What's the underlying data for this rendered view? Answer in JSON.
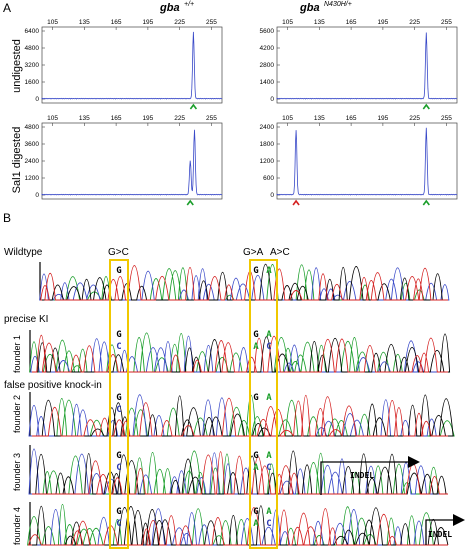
{
  "panel_a": {
    "label": "A",
    "col1": {
      "name": "gba",
      "sup": "+/+"
    },
    "col2": {
      "name": "gba",
      "sup": "N430H/+"
    },
    "row1": "undigested",
    "row2": "Sal1 digested",
    "x_ticks": [
      "105",
      "135",
      "165",
      "195",
      "225",
      "255"
    ],
    "plots": [
      {
        "id": "ud-wt",
        "y_ticks": [
          "6400",
          "4800",
          "3200",
          "1600",
          "0"
        ],
        "peaks": [
          {
            "x": 238,
            "h": 0.98,
            "marker": "green"
          }
        ]
      },
      {
        "id": "ud-mut",
        "y_ticks": [
          "5600",
          "4200",
          "2800",
          "1400",
          "0"
        ],
        "peaks": [
          {
            "x": 236,
            "h": 0.97,
            "marker": "green"
          }
        ]
      },
      {
        "id": "dg-wt",
        "y_ticks": [
          "4800",
          "3600",
          "2400",
          "1200",
          "0"
        ],
        "peaks": [
          {
            "x": 235,
            "h": 0.5,
            "marker": "green"
          },
          {
            "x": 239,
            "h": 0.95,
            "marker": null
          }
        ]
      },
      {
        "id": "dg-mut",
        "y_ticks": [
          "2400",
          "1800",
          "1200",
          "600",
          "0"
        ],
        "peaks": [
          {
            "x": 113,
            "h": 0.95,
            "marker": "red"
          },
          {
            "x": 236,
            "h": 0.98,
            "marker": "green"
          }
        ]
      }
    ]
  },
  "panel_b": {
    "label": "B",
    "row_labels": {
      "wildtype": "Wildtype",
      "precise": "precise KI",
      "false_pos": "false positive knock-in"
    },
    "mutations": {
      "m1": "G>C",
      "m2": "G>A",
      "m3": "A>C"
    },
    "founders": [
      "founder 1",
      "founder 2",
      "founder 3",
      "founder 4"
    ],
    "bases": {
      "wt": [
        {
          "t": "G",
          "c": "#000000"
        },
        {
          "t": "G",
          "c": "#000000"
        },
        {
          "t": "A",
          "c": "#1a9e2a"
        }
      ],
      "f1": [
        [
          "G",
          "C"
        ],
        [
          "G",
          "A"
        ],
        [
          "A",
          "C"
        ]
      ],
      "f2": [
        [
          "G",
          "C"
        ],
        [
          "G"
        ],
        [
          "A"
        ]
      ],
      "f3": [
        [
          "G",
          "C"
        ],
        [
          "G",
          "A"
        ],
        [
          "A",
          "C"
        ]
      ],
      "f4": [
        [
          "G",
          "C"
        ],
        [
          "G",
          "A"
        ],
        [
          "A",
          "C"
        ]
      ]
    },
    "indel": "INDEL",
    "colors": {
      "G": "#000000",
      "A": "#1a9e2a",
      "C": "#2b38b0",
      "T": "#d42020",
      "box": "#f0c800",
      "peak": "#3949c8"
    }
  }
}
